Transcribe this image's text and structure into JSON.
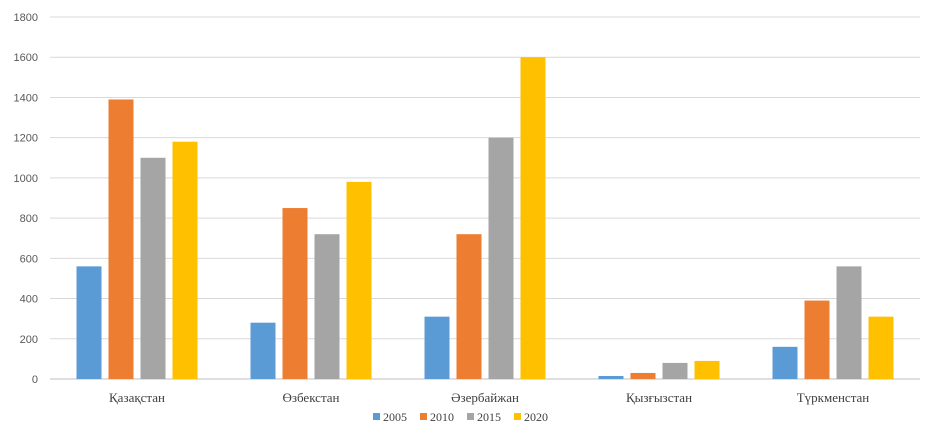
{
  "chart_data": {
    "type": "bar",
    "categories": [
      "Қазақстан",
      "Өзбекстан",
      "Әзербайжан",
      "Қызғызстан",
      "Түркменстан"
    ],
    "series": [
      {
        "name": "2005",
        "color": "#5b9bd5",
        "values": [
          560,
          280,
          310,
          15,
          160
        ]
      },
      {
        "name": "2010",
        "color": "#ed7d31",
        "values": [
          1390,
          850,
          720,
          30,
          390
        ]
      },
      {
        "name": "2015",
        "color": "#a5a5a5",
        "values": [
          1100,
          720,
          1200,
          80,
          560
        ]
      },
      {
        "name": "2020",
        "color": "#ffc000",
        "values": [
          1180,
          980,
          1600,
          90,
          310
        ]
      }
    ],
    "yticks": [
      "0",
      "200",
      "400",
      "600",
      "800",
      "1000",
      "1200",
      "1400",
      "1600",
      "1800"
    ],
    "ylim": [
      0,
      1800
    ],
    "grid": true,
    "legend_position": "bottom"
  }
}
